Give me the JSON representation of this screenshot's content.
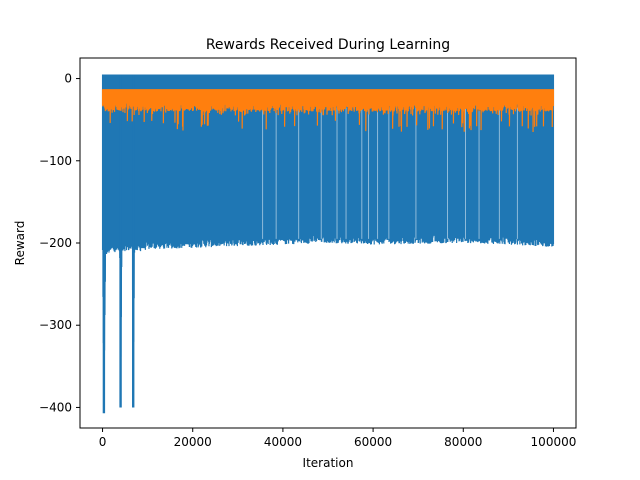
{
  "chart_data": {
    "type": "line",
    "title": "Rewards Received During Learning",
    "xlabel": "Iteration",
    "ylabel": "Reward",
    "xlim": [
      -5000,
      105000
    ],
    "ylim": [
      -425,
      25
    ],
    "xticks": [
      0,
      20000,
      40000,
      60000,
      80000,
      100000
    ],
    "xtick_labels": [
      "0",
      "20000",
      "40000",
      "60000",
      "80000",
      "100000"
    ],
    "yticks": [
      0,
      -100,
      -200,
      -300,
      -400
    ],
    "ytick_labels": [
      "0",
      "−100",
      "−200",
      "−300",
      "−400"
    ],
    "grid": false,
    "legend": false,
    "series": [
      {
        "color": "#1f77b4",
        "x_range": [
          0,
          100000
        ],
        "upper": 5,
        "lower_envelope": [
          [
            0,
            -215
          ],
          [
            300,
            -407
          ],
          [
            700,
            -215
          ],
          [
            2000,
            -212
          ],
          [
            3800,
            -210
          ],
          [
            4000,
            -400
          ],
          [
            4300,
            -210
          ],
          [
            5500,
            -210
          ],
          [
            6600,
            -210
          ],
          [
            6800,
            -400
          ],
          [
            7100,
            -212
          ],
          [
            10000,
            -208
          ],
          [
            20000,
            -206
          ],
          [
            30000,
            -204
          ],
          [
            40000,
            -202
          ],
          [
            50000,
            -200
          ],
          [
            60000,
            -202
          ],
          [
            70000,
            -201
          ],
          [
            80000,
            -200
          ],
          [
            90000,
            -202
          ],
          [
            100000,
            -205
          ]
        ]
      },
      {
        "color": "#ff7f0e",
        "x_range": [
          0,
          100000
        ],
        "upper": -13,
        "lower_typical": -35,
        "lower_min": -65
      }
    ]
  }
}
